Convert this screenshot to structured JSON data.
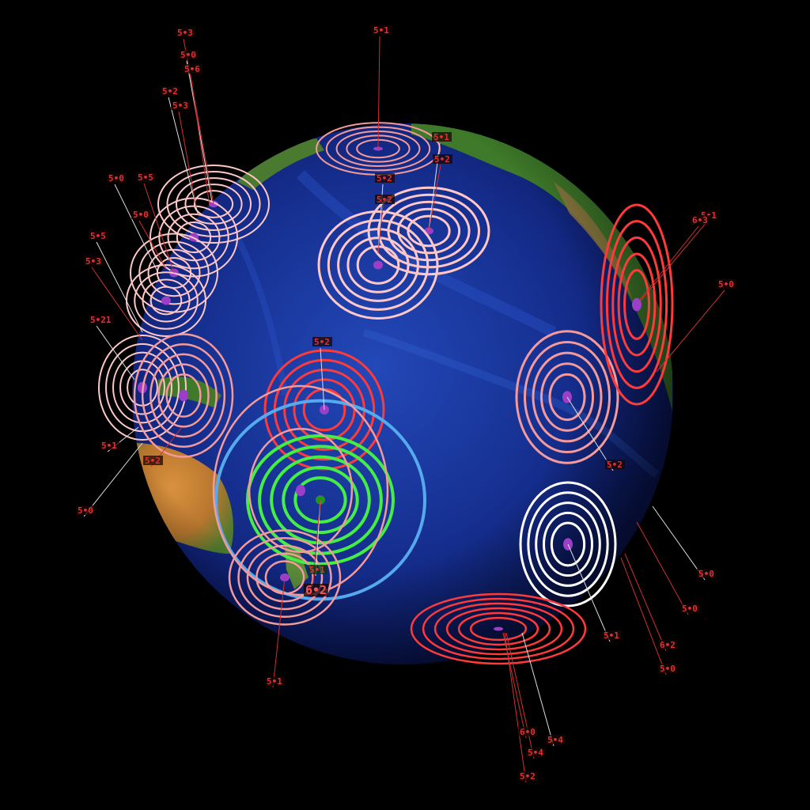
{
  "colors": {
    "ocean_deep": "#0b1a6e",
    "ocean_mid": "#1d3fb3",
    "ocean_light": "#3d6fdc",
    "land_green": "#3f7a2a",
    "land_desert": "#c98a3a",
    "ice": "#f4f6fa",
    "ring_red": "#ff3a3a",
    "ring_salmon": "#f49a9a",
    "ring_pink": "#ffc8c8",
    "ring_white": "#ffffff",
    "ring_green": "#44ee44",
    "ring_blue": "#55aaee",
    "center_purple": "#9b3fc8",
    "label_red": "#e03030",
    "leader_red": "#d03030",
    "leader_white": "#dddddd"
  },
  "labels": [
    {
      "id": "l-top-51",
      "text": "5•1"
    },
    {
      "id": "l-nw-53",
      "text": "5•3"
    },
    {
      "id": "l-nw-50a",
      "text": "5•0"
    },
    {
      "id": "l-nw-56",
      "text": "5•6"
    },
    {
      "id": "l-nw-52",
      "text": "5•2"
    },
    {
      "id": "l-nw-53b",
      "text": "5•3"
    },
    {
      "id": "l-w-50",
      "text": "5•0"
    },
    {
      "id": "l-w-55",
      "text": "5•5"
    },
    {
      "id": "l-w-50b",
      "text": "5•0"
    },
    {
      "id": "l-w-55b",
      "text": "5•5"
    },
    {
      "id": "l-w-53",
      "text": "5•3"
    },
    {
      "id": "l-w-521",
      "text": "5•21"
    },
    {
      "id": "l-w-51",
      "text": "5•1"
    },
    {
      "id": "l-w-52",
      "text": "5•2"
    },
    {
      "id": "l-w-50c",
      "text": "5•0"
    },
    {
      "id": "l-n-51",
      "text": "5•1"
    },
    {
      "id": "l-n-52",
      "text": "5•2"
    },
    {
      "id": "l-n-52b",
      "text": "5•2"
    },
    {
      "id": "l-n-52c",
      "text": "5•2"
    },
    {
      "id": "l-c-52",
      "text": "5•2"
    },
    {
      "id": "l-e-51",
      "text": "5•1"
    },
    {
      "id": "l-e-63",
      "text": "6•3"
    },
    {
      "id": "l-e-50",
      "text": "5•0"
    },
    {
      "id": "l-e-52",
      "text": "5•2"
    },
    {
      "id": "l-se-50",
      "text": "5•0"
    },
    {
      "id": "l-se-50b",
      "text": "5•0"
    },
    {
      "id": "l-se-62",
      "text": "6•2"
    },
    {
      "id": "l-se-50c",
      "text": "5•0"
    },
    {
      "id": "l-se-51",
      "text": "5•1"
    },
    {
      "id": "l-s-60",
      "text": "6•0"
    },
    {
      "id": "l-s-54",
      "text": "5•4"
    },
    {
      "id": "l-s-54b",
      "text": "5•4"
    },
    {
      "id": "l-s-52",
      "text": "5•2"
    },
    {
      "id": "l-sw-51",
      "text": "5•1"
    },
    {
      "id": "l-g-51",
      "text": "5•1"
    },
    {
      "id": "l-g-62",
      "text": "6•2"
    }
  ]
}
